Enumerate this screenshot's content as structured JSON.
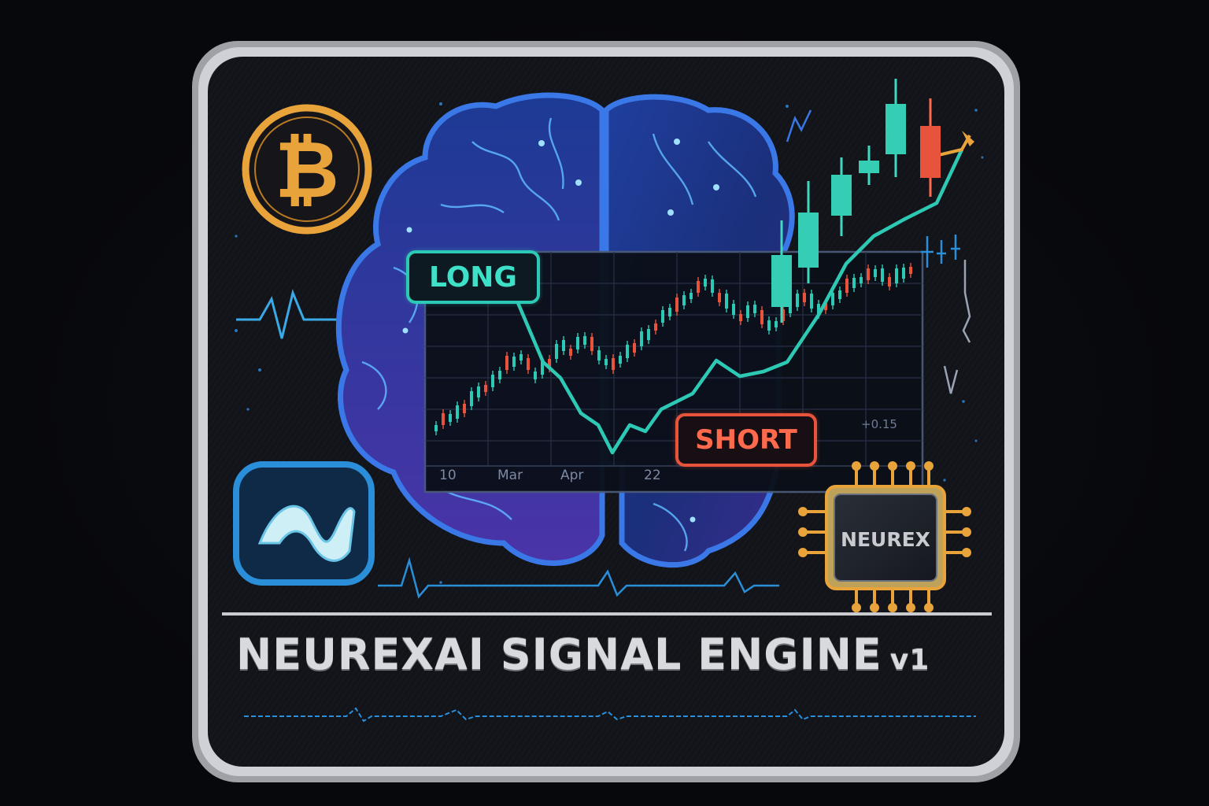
{
  "patch": {
    "title": "NEUREXAI SIGNAL ENGINE",
    "version": "v1"
  },
  "signals": {
    "long_label": "LONG",
    "short_label": "SHORT"
  },
  "chart": {
    "x_labels": [
      "10",
      "Mar",
      "Apr",
      "22"
    ],
    "readout": "+0.15"
  },
  "chip": {
    "label": "NEUREX"
  },
  "icons": {
    "coin": "bitcoin-icon",
    "wave": "wave-icon",
    "brain": "brain-icon",
    "chip": "microchip-icon"
  },
  "colors": {
    "background": "#08090c",
    "patch_fill": "#111318",
    "border_silver": "#bfc1c6",
    "teal": "#2ec9b4",
    "red": "#e8533b",
    "gold": "#e8a33a",
    "blue": "#2a7bd8",
    "purple": "#6a4fd6"
  }
}
